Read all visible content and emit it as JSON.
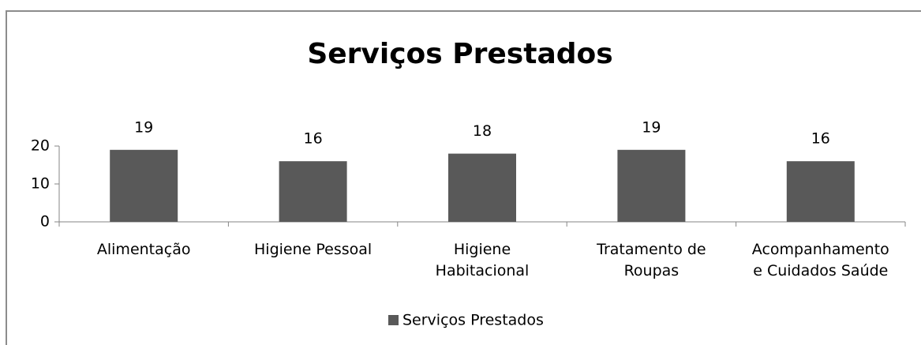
{
  "chart_data": {
    "type": "bar",
    "title": "Serviços Prestados",
    "categories": [
      "Alimentação",
      "Higiene Pessoal",
      "Higiene Habitacional",
      "Tratamento de Roupas",
      "Acompanhamento e Cuidados Saúde"
    ],
    "series": [
      {
        "name": "Serviços Prestados",
        "color": "#595959",
        "values": [
          19,
          16,
          18,
          19,
          16
        ]
      }
    ],
    "ylim": [
      0,
      20
    ],
    "yticks": [
      0,
      10,
      20
    ],
    "grid": false,
    "legend": "bottom"
  }
}
